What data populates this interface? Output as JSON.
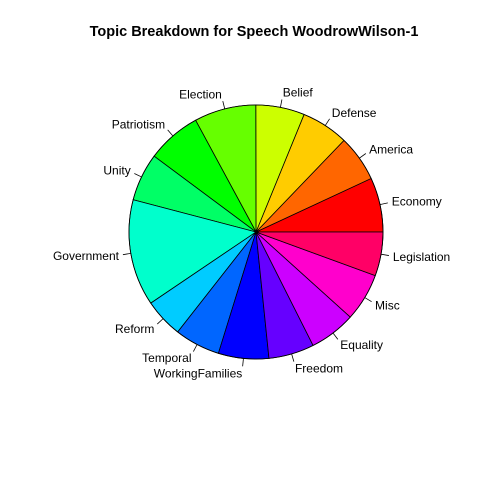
{
  "chart_data": {
    "type": "pie",
    "title": "Topic Breakdown for Speech WoodrowWilson-1",
    "direction": "counterclockwise",
    "start": "east",
    "slices": [
      {
        "label": "Economy",
        "value": 6.7,
        "color": "#ff0000"
      },
      {
        "label": "America",
        "value": 5.7,
        "color": "#ff6600"
      },
      {
        "label": "Defense",
        "value": 5.8,
        "color": "#ffcc00"
      },
      {
        "label": "Belief",
        "value": 6.0,
        "color": "#ccff00"
      },
      {
        "label": "Election",
        "value": 7.6,
        "color": "#66ff00"
      },
      {
        "label": "Patriotism",
        "value": 6.7,
        "color": "#00ff00"
      },
      {
        "label": "Unity",
        "value": 5.9,
        "color": "#00ff66"
      },
      {
        "label": "Government",
        "value": 13.1,
        "color": "#00ffcc"
      },
      {
        "label": "Reform",
        "value": 4.8,
        "color": "#00ccff"
      },
      {
        "label": "Temporal",
        "value": 5.6,
        "color": "#0066ff"
      },
      {
        "label": "WorkingFamilies",
        "value": 6.2,
        "color": "#0000ff"
      },
      {
        "label": "Freedom",
        "value": 5.6,
        "color": "#6600ff"
      },
      {
        "label": "Equality",
        "value": 5.7,
        "color": "#cc00ff"
      },
      {
        "label": "Misc",
        "value": 5.9,
        "color": "#ff00cc"
      },
      {
        "label": "Legislation",
        "value": 5.4,
        "color": "#ff0066"
      }
    ]
  }
}
